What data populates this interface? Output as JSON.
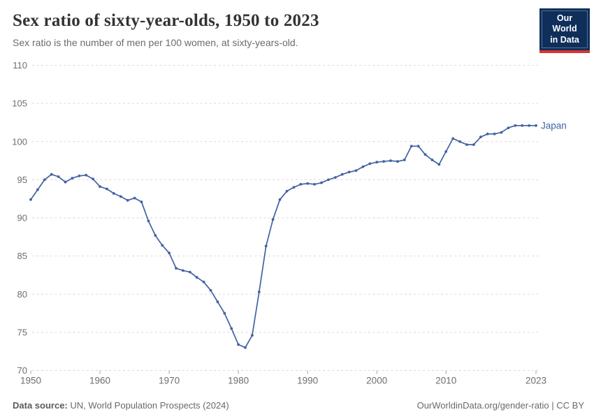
{
  "header": {
    "title": "Sex ratio of sixty-year-olds, 1950 to 2023",
    "subtitle": "Sex ratio is the number of men per 100 women, at sixty-years-old.",
    "logo": {
      "line1": "Our World",
      "line2": "in Data"
    }
  },
  "footer": {
    "data_source_label": "Data source:",
    "data_source_value": " UN, World Population Prospects (2024)",
    "credit": "OurWorldinData.org/gender-ratio | CC BY"
  },
  "colors": {
    "line": "#4262A3",
    "series_label": "#4262A3",
    "grid": "#dadada",
    "tick": "#a3a3a3",
    "axis_text": "#6e6e6e",
    "logo_bg": "#0e2f5a",
    "logo_red": "#d8352e"
  },
  "chart_data": {
    "type": "line",
    "title": "Sex ratio of sixty-year-olds, 1950 to 2023",
    "subtitle": "Sex ratio is the number of men per 100 women, at sixty-years-old.",
    "xlabel": "",
    "ylabel": "",
    "ylim": [
      70,
      110
    ],
    "yticks": [
      70,
      75,
      80,
      85,
      90,
      95,
      100,
      105,
      110
    ],
    "xticks": [
      1950,
      1960,
      1970,
      1980,
      1990,
      2000,
      2010,
      2023
    ],
    "grid": "horizontal-dashed",
    "legend": "end-of-line-label",
    "series": [
      {
        "name": "Japan",
        "color": "#4262A3",
        "x": [
          1950,
          1951,
          1952,
          1953,
          1954,
          1955,
          1956,
          1957,
          1958,
          1959,
          1960,
          1961,
          1962,
          1963,
          1964,
          1965,
          1966,
          1967,
          1968,
          1969,
          1970,
          1971,
          1972,
          1973,
          1974,
          1975,
          1976,
          1977,
          1978,
          1979,
          1980,
          1981,
          1982,
          1983,
          1984,
          1985,
          1986,
          1987,
          1988,
          1989,
          1990,
          1991,
          1992,
          1993,
          1994,
          1995,
          1996,
          1997,
          1998,
          1999,
          2000,
          2001,
          2002,
          2003,
          2004,
          2005,
          2006,
          2007,
          2008,
          2009,
          2010,
          2011,
          2012,
          2013,
          2014,
          2015,
          2016,
          2017,
          2018,
          2019,
          2020,
          2021,
          2022,
          2023
        ],
        "values": [
          92.4,
          93.7,
          95.0,
          95.7,
          95.4,
          94.7,
          95.2,
          95.5,
          95.6,
          95.1,
          94.1,
          93.8,
          93.2,
          92.8,
          92.3,
          92.6,
          92.1,
          89.6,
          87.7,
          86.4,
          85.4,
          83.4,
          83.1,
          82.9,
          82.2,
          81.6,
          80.5,
          79.0,
          77.5,
          75.5,
          73.4,
          73.0,
          74.6,
          80.3,
          86.3,
          89.8,
          92.4,
          93.5,
          94.0,
          94.4,
          94.5,
          94.4,
          94.6,
          95.0,
          95.3,
          95.7,
          96.0,
          96.2,
          96.7,
          97.1,
          97.3,
          97.4,
          97.5,
          97.4,
          97.6,
          99.4,
          99.4,
          98.3,
          97.6,
          97.0,
          98.7,
          100.4,
          100.0,
          99.6,
          99.6,
          100.6,
          101.0,
          101.0,
          101.2,
          101.8,
          102.1,
          102.1,
          102.1,
          102.1
        ]
      }
    ]
  }
}
